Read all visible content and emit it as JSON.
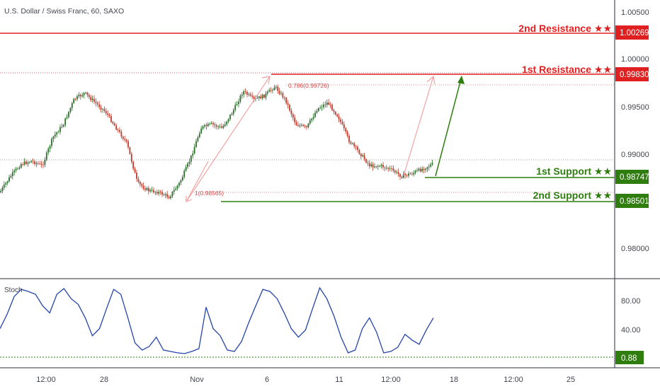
{
  "header": {
    "symbol_title": "U.S. Dollar / Swiss Franc, 60, SAXO"
  },
  "colors": {
    "resistance": "#e02020",
    "support": "#2e7d0e",
    "candle_up": "#2b6e2b",
    "candle_down": "#c0392b",
    "stoch": "#2444a8",
    "arrow_light": "#f2a3a3",
    "arrow_green": "#2e7d0e"
  },
  "levels": [
    {
      "key": "res2",
      "label": "2nd Resistance ★★",
      "price": "1.00269",
      "value": 1.00269,
      "type": "resistance"
    },
    {
      "key": "res1",
      "label": "1st Resistance ★★",
      "price": "0.99830",
      "value": 0.9983,
      "type": "resistance"
    },
    {
      "key": "sup1",
      "label": "1st Support ★★",
      "price": "0.98747",
      "value": 0.98747,
      "type": "support"
    },
    {
      "key": "sup2",
      "label": "2nd Support ★★",
      "price": "0.98501",
      "value": 0.98501,
      "type": "support"
    }
  ],
  "annotations": {
    "fib_top": "0.786(0.99726)",
    "fib_low": "1(0.98565)"
  },
  "stoch_panel": {
    "label": "Stoch",
    "current_value": "0.88",
    "current_num": 0.88
  },
  "chart_data": {
    "type": "line",
    "title": "U.S. Dollar / Swiss Franc, 60, SAXO",
    "x_ticks": [
      "12:00",
      "28",
      "Nov",
      "6",
      "11",
      "12:00",
      "18",
      "12:00",
      "25"
    ],
    "y_ticks": [
      "1.00500",
      "1.00000",
      "0.99500",
      "0.99000",
      "0.98000"
    ],
    "ylim": [
      0.9765,
      1.0055
    ],
    "series": [
      {
        "x": [
          0,
          5,
          10,
          15,
          20,
          25,
          30,
          35,
          40,
          45,
          50,
          55,
          60,
          65,
          70,
          75,
          80,
          85,
          90,
          95,
          100
        ],
        "values": [
          0.986,
          0.9877,
          0.989,
          0.9893,
          0.9888,
          0.9918,
          0.9932,
          0.9958,
          0.9965,
          0.9955,
          0.9945,
          0.9928,
          0.9912,
          0.987,
          0.9862,
          0.986,
          0.9855,
          0.987,
          0.9895,
          0.9928,
          0.9932
        ]
      },
      {
        "x": [
          105,
          110,
          115,
          120,
          125,
          130,
          135,
          140,
          145,
          150,
          155,
          160,
          165,
          170,
          175,
          180,
          185,
          190,
          195,
          200,
          205
        ],
        "values": [
          0.9928,
          0.9945,
          0.9967,
          0.9958,
          0.9962,
          0.9972,
          0.9958,
          0.9932,
          0.9928,
          0.9948,
          0.9955,
          0.994,
          0.9915,
          0.9902,
          0.9888,
          0.9888,
          0.9884,
          0.9877,
          0.988,
          0.9885,
          0.989
        ]
      }
    ],
    "stoch": {
      "ticks": [
        "80.00",
        "40.00"
      ],
      "ylim": [
        0,
        100
      ],
      "values": [
        40,
        60,
        85,
        95,
        92,
        88,
        72,
        62,
        88,
        96,
        82,
        74,
        55,
        30,
        40,
        68,
        95,
        88,
        55,
        20,
        10,
        15,
        28,
        10,
        8,
        6,
        5,
        8,
        12,
        70,
        40,
        30,
        10,
        8,
        22,
        48,
        72,
        95,
        92,
        82,
        62,
        40,
        28,
        38,
        68,
        97,
        82,
        58,
        28,
        6,
        10,
        40,
        55,
        35,
        6,
        8,
        14,
        32,
        24,
        18,
        38,
        55
      ]
    }
  }
}
